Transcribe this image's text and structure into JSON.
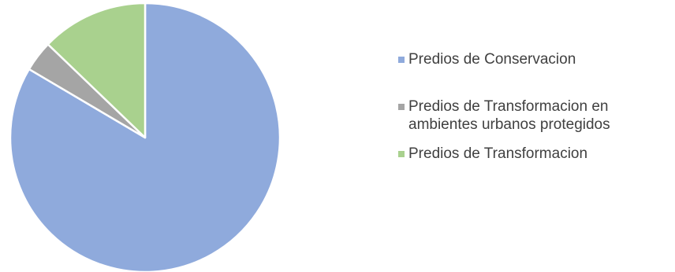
{
  "chart_data": {
    "type": "pie",
    "categories": [
      "Predios de Conservacion",
      "Predios de Transformacion en ambientes urbanos protegidos",
      "Predios de Transformacion"
    ],
    "values": [
      83.5,
      3.7,
      12.8
    ],
    "colors": [
      "#8FAADC",
      "#A5A5A5",
      "#A9D18E"
    ],
    "title": "",
    "legend_position": "right",
    "slice_border_color": "#ffffff"
  }
}
